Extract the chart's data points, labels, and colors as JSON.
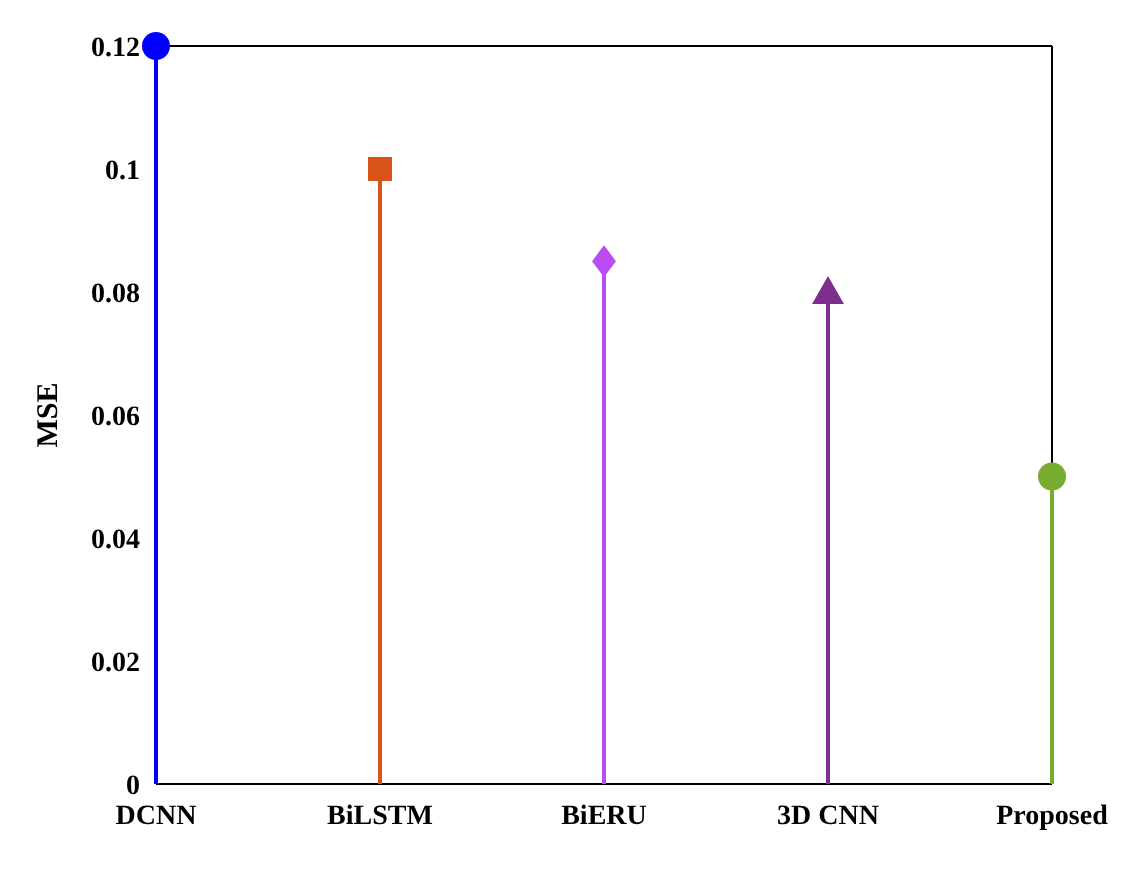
{
  "chart_data": {
    "type": "lollipop",
    "ylabel": "MSE",
    "categories": [
      "DCNN",
      "BiLSTM",
      "BiERU",
      "3D CNN",
      "Proposed"
    ],
    "series": [
      {
        "color": "#0000ff",
        "marker": "circle",
        "values": [
          0.12,
          null,
          null,
          null,
          null
        ]
      },
      {
        "color": "#d95319",
        "marker": "square",
        "values": [
          null,
          0.1,
          null,
          null,
          null
        ]
      },
      {
        "color": "#b94cf2",
        "marker": "diamond",
        "values": [
          null,
          null,
          0.085,
          null,
          null
        ]
      },
      {
        "color": "#7e2f8e",
        "marker": "triangle",
        "values": [
          null,
          null,
          null,
          0.08,
          null
        ]
      },
      {
        "color": "#77ac30",
        "marker": "circle",
        "values": [
          null,
          null,
          null,
          null,
          0.05
        ]
      }
    ],
    "ylim": [
      0,
      0.12
    ],
    "yticks": [
      0,
      0.02,
      0.04,
      0.06,
      0.08,
      0.1,
      0.12
    ]
  }
}
